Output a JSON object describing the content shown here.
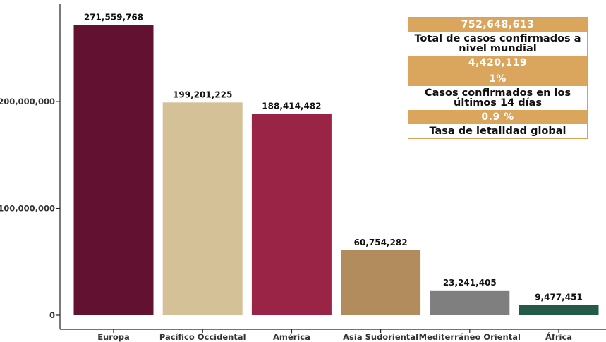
{
  "chart_data": {
    "type": "bar",
    "categories": [
      "Europa",
      "Pacífico Occidental",
      "América",
      "Asia Sudoriental",
      "Mediterráneo Oriental",
      "África"
    ],
    "values": [
      271559768,
      199201225,
      188414482,
      60754282,
      23241405,
      9477451
    ],
    "value_labels": [
      "271,559,768",
      "199,201,225",
      "188,414,482",
      "60,754,282",
      "23,241,405",
      "9,477,451"
    ],
    "colors": [
      "#631131",
      "#d5c198",
      "#9a2445",
      "#b28c5c",
      "#7f7f7f",
      "#235b46"
    ],
    "yticks": [
      0,
      100000000,
      200000000
    ],
    "ytick_labels": [
      "0",
      "100,000,000",
      "200,000,000"
    ],
    "ylim": [
      0,
      290000000
    ],
    "grid": false,
    "title": "",
    "xlabel": "",
    "ylabel": ""
  },
  "summary_box": {
    "total_cases": "752,648,613",
    "total_cases_label": "Total de casos confirmados a nivel mundial",
    "recent_cases": "4,420,119",
    "recent_pct": "1%",
    "recent_label": "Casos confirmados en los últimos 14 días",
    "lethality": "0.9 %",
    "lethality_label": "Tasa de letalidad global"
  }
}
